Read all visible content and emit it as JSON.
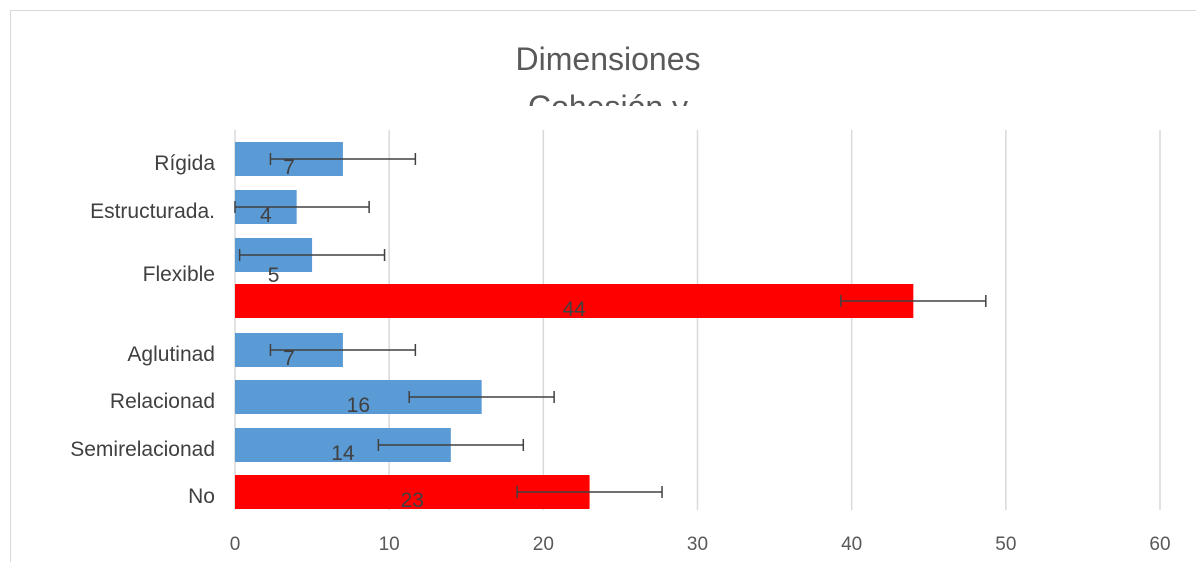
{
  "chart_data": {
    "type": "bar",
    "orientation": "horizontal",
    "title": "Dimensiones",
    "subtitle": "Cohesión y",
    "categories": [
      "Rígida",
      "Estructurada.",
      "Flexible",
      "",
      "Aglutinad",
      "Relacionad",
      "Semirelacionad",
      "No"
    ],
    "values": [
      7,
      4,
      5,
      44,
      7,
      16,
      14,
      23
    ],
    "data_labels": [
      "7",
      "4",
      "5",
      "44",
      "7",
      "16",
      "14",
      "23"
    ],
    "error_bars": [
      4.7,
      4.7,
      4.7,
      4.7,
      4.7,
      4.7,
      4.7,
      4.7
    ],
    "bar_colors": [
      "#5b9bd5",
      "#5b9bd5",
      "#5b9bd5",
      "#ff0000",
      "#5b9bd5",
      "#5b9bd5",
      "#5b9bd5",
      "#ff0000"
    ],
    "xlim": [
      0,
      60
    ],
    "xticks": [
      0,
      10,
      20,
      30,
      40,
      50,
      60
    ],
    "grid": true,
    "xlabel": "",
    "ylabel": ""
  },
  "colors": {
    "blue_bar": "#5b9bd5",
    "highlight_bar": "#ff0000",
    "gridline": "#d9d9d9",
    "error_bar": "#404040"
  }
}
